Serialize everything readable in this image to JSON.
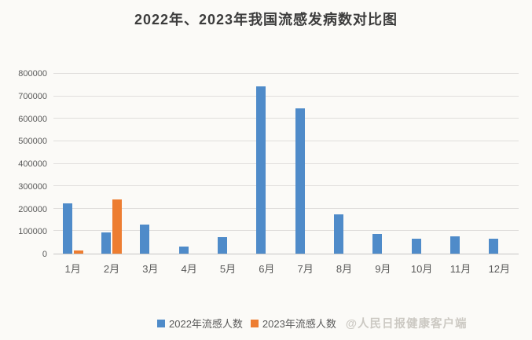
{
  "title": "2022年、2023年我国流感发病数对比图",
  "watermark": "@人民日报健康客户端",
  "colors": {
    "series_2022": "#4f8bc9",
    "series_2023": "#ed7d31",
    "gridline": "#e0dedc",
    "axis_line": "#c6c6c6",
    "background": "#fbfaf7"
  },
  "legend": {
    "items": [
      {
        "label": "2022年流感人数",
        "color": "#4f8bc9"
      },
      {
        "label": "2023年流感人数",
        "color": "#ed7d31"
      }
    ],
    "position": "bottom"
  },
  "chart_data": {
    "type": "bar",
    "title": "2022年、2023年我国流感发病数对比图",
    "categories": [
      "1月",
      "2月",
      "3月",
      "4月",
      "5月",
      "6月",
      "7月",
      "8月",
      "9月",
      "10月",
      "11月",
      "12月"
    ],
    "series": [
      {
        "name": "2022年流感人数",
        "color": "#4f8bc9",
        "values": [
          225000,
          95000,
          130000,
          32000,
          75000,
          745000,
          645000,
          175000,
          88000,
          65000,
          78000,
          65000
        ]
      },
      {
        "name": "2023年流感人数",
        "color": "#ed7d31",
        "values": [
          15000,
          240000,
          null,
          null,
          null,
          null,
          null,
          null,
          null,
          null,
          null,
          null
        ]
      }
    ],
    "xlabel": "",
    "ylabel": "",
    "ylim": [
      0,
      800000
    ],
    "yticks": [
      0,
      100000,
      200000,
      300000,
      400000,
      500000,
      600000,
      700000,
      800000
    ],
    "grid": true,
    "legend_position": "bottom"
  }
}
